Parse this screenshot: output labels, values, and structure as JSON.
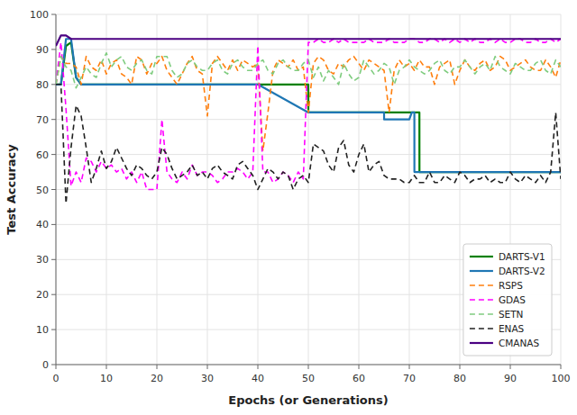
{
  "chart_data": {
    "type": "line",
    "xlabel": "Epochs (or Generations)",
    "ylabel": "Test Accuracy",
    "xlim": [
      0,
      100
    ],
    "ylim": [
      0,
      100
    ],
    "xticks": [
      0,
      10,
      20,
      30,
      40,
      50,
      60,
      70,
      80,
      90,
      100
    ],
    "yticks": [
      0,
      10,
      20,
      30,
      40,
      50,
      60,
      70,
      80,
      90,
      100
    ],
    "grid": true,
    "legend": "lower right",
    "series": [
      {
        "name": "DARTS-V1",
        "color": "#008000",
        "line_style": "solid",
        "x": [
          0,
          0.5,
          1,
          2,
          3,
          4,
          5,
          6,
          40,
          40.01,
          50,
          50.01,
          72,
          72.01,
          100
        ],
        "values": [
          80,
          80,
          80,
          91,
          92,
          82,
          80,
          80,
          80,
          80,
          80,
          72,
          72,
          55,
          55
        ]
      },
      {
        "name": "DARTS-V2",
        "color": "#1f77b4",
        "line_style": "solid",
        "x": [
          0,
          0.5,
          1,
          2,
          3,
          4,
          5,
          6,
          40,
          40.01,
          50,
          50.01,
          65,
          65.01,
          70,
          70.5,
          71,
          71.01,
          100
        ],
        "values": [
          80,
          80,
          80,
          93,
          93,
          82,
          80,
          80,
          80,
          80,
          72,
          72,
          72,
          70,
          70,
          72,
          72,
          55,
          55
        ]
      },
      {
        "name": "RSPS",
        "color": "#ff7f0e",
        "line_style": "dashed",
        "x": [
          0,
          1,
          2,
          3,
          4,
          5,
          6,
          7,
          8,
          9,
          10,
          11,
          12,
          13,
          14,
          15,
          16,
          17,
          18,
          19,
          20,
          21,
          22,
          23,
          24,
          25,
          26,
          27,
          28,
          29,
          30,
          31,
          32,
          33,
          34,
          35,
          36,
          37,
          38,
          39,
          40,
          41,
          42,
          43,
          44,
          45,
          46,
          47,
          48,
          49,
          50,
          51,
          52,
          53,
          54,
          55,
          56,
          57,
          58,
          59,
          60,
          61,
          62,
          63,
          64,
          65,
          66,
          67,
          68,
          69,
          70,
          71,
          72,
          73,
          74,
          75,
          76,
          77,
          78,
          79,
          80,
          81,
          82,
          83,
          84,
          85,
          86,
          87,
          88,
          89,
          90,
          91,
          92,
          93,
          94,
          95,
          96,
          97,
          98,
          99,
          100
        ],
        "values": [
          80,
          88,
          86,
          86,
          85,
          80,
          88,
          85,
          84,
          87,
          83,
          86,
          87,
          83,
          82,
          80,
          88,
          87,
          83,
          86,
          86,
          88,
          84,
          82,
          80,
          83,
          86,
          88,
          84,
          83,
          71,
          86,
          88,
          86,
          84,
          87,
          84,
          87,
          86,
          85,
          86,
          61,
          72,
          84,
          87,
          86,
          85,
          87,
          84,
          85,
          72,
          86,
          88,
          87,
          84,
          83,
          86,
          85,
          87,
          88,
          86,
          84,
          87,
          86,
          85,
          84,
          72,
          84,
          87,
          85,
          86,
          84,
          87,
          85,
          85,
          80,
          85,
          86,
          87,
          80,
          84,
          87,
          85,
          84,
          86,
          87,
          84,
          85,
          88,
          87,
          84,
          85,
          86,
          87,
          85,
          84,
          84,
          87,
          85,
          82,
          87
        ]
      },
      {
        "name": "GDAS",
        "color": "#ff00ff",
        "line_style": "dashed",
        "x": [
          0,
          1,
          2,
          3,
          4,
          5,
          6,
          7,
          8,
          9,
          10,
          11,
          12,
          13,
          14,
          15,
          16,
          17,
          18,
          19,
          20,
          21,
          22,
          23,
          24,
          25,
          26,
          27,
          28,
          29,
          30,
          31,
          32,
          33,
          34,
          35,
          36,
          37,
          38,
          39,
          40,
          41,
          42,
          43,
          44,
          45,
          46,
          47,
          48,
          49,
          50,
          51,
          52,
          53,
          54,
          55,
          56,
          57,
          58,
          59,
          60,
          61,
          62,
          63,
          64,
          65,
          66,
          67,
          68,
          69,
          70,
          71,
          72,
          73,
          74,
          75,
          76,
          77,
          78,
          79,
          80,
          81,
          82,
          83,
          84,
          85,
          86,
          87,
          88,
          89,
          90,
          91,
          92,
          93,
          94,
          95,
          96,
          97,
          98,
          99,
          100
        ],
        "values": [
          80,
          92,
          73,
          51,
          55,
          52,
          59,
          58,
          55,
          58,
          56,
          57,
          55,
          56,
          53,
          55,
          52,
          55,
          50,
          50,
          50,
          70,
          55,
          53,
          52,
          55,
          53,
          57,
          54,
          55,
          55,
          54,
          52,
          53,
          55,
          55,
          56,
          55,
          53,
          55,
          91,
          55,
          55,
          52,
          53,
          55,
          54,
          52,
          55,
          53,
          92,
          92,
          93,
          92,
          92,
          93,
          92,
          93,
          92,
          92,
          92,
          92,
          93,
          92,
          92,
          92,
          93,
          92,
          92,
          92,
          93,
          93,
          92,
          92,
          93,
          93,
          92,
          93,
          92,
          93,
          92,
          93,
          92,
          93,
          92,
          92,
          93,
          92,
          93,
          92,
          92,
          93,
          93,
          92,
          92,
          93,
          92,
          92,
          93,
          92,
          93
        ]
      },
      {
        "name": "SETN",
        "color": "#7fcc7f",
        "line_style": "dashed",
        "x": [
          0,
          1,
          2,
          3,
          4,
          5,
          6,
          7,
          8,
          9,
          10,
          11,
          12,
          13,
          14,
          15,
          16,
          17,
          18,
          19,
          20,
          21,
          22,
          23,
          24,
          25,
          26,
          27,
          28,
          29,
          30,
          31,
          32,
          33,
          34,
          35,
          36,
          37,
          38,
          39,
          40,
          41,
          42,
          43,
          44,
          45,
          46,
          47,
          48,
          49,
          50,
          51,
          52,
          53,
          54,
          55,
          56,
          57,
          58,
          59,
          60,
          61,
          62,
          63,
          64,
          65,
          66,
          67,
          68,
          69,
          70,
          71,
          72,
          73,
          74,
          75,
          76,
          77,
          78,
          79,
          80,
          81,
          82,
          83,
          84,
          85,
          86,
          87,
          88,
          89,
          90,
          91,
          92,
          93,
          94,
          95,
          96,
          97,
          98,
          99,
          100
        ],
        "values": [
          80,
          88,
          85,
          84,
          79,
          82,
          85,
          83,
          82,
          86,
          89,
          85,
          87,
          88,
          85,
          84,
          86,
          87,
          84,
          83,
          88,
          88,
          88,
          84,
          82,
          83,
          86,
          87,
          85,
          84,
          84,
          86,
          87,
          84,
          83,
          86,
          87,
          85,
          84,
          84,
          86,
          87,
          84,
          83,
          86,
          87,
          85,
          84,
          84,
          86,
          87,
          82,
          85,
          81,
          84,
          82,
          80,
          86,
          83,
          81,
          82,
          87,
          85,
          83,
          84,
          86,
          85,
          80,
          84,
          85,
          87,
          85,
          84,
          83,
          84,
          86,
          87,
          84,
          83,
          85,
          85,
          87,
          85,
          83,
          85,
          86,
          84,
          88,
          85,
          84,
          83,
          86,
          85,
          84,
          84,
          86,
          87,
          84,
          83,
          87,
          85
        ]
      },
      {
        "name": "ENAS",
        "color": "#222222",
        "line_style": "dashed",
        "x": [
          0,
          1,
          2,
          3,
          4,
          5,
          6,
          7,
          8,
          9,
          10,
          11,
          12,
          13,
          14,
          15,
          16,
          17,
          18,
          19,
          20,
          21,
          22,
          23,
          24,
          25,
          26,
          27,
          28,
          29,
          30,
          31,
          32,
          33,
          34,
          35,
          36,
          37,
          38,
          39,
          40,
          41,
          42,
          43,
          44,
          45,
          46,
          47,
          48,
          49,
          50,
          51,
          52,
          53,
          54,
          55,
          56,
          57,
          58,
          59,
          60,
          61,
          62,
          63,
          64,
          65,
          66,
          67,
          68,
          69,
          70,
          71,
          72,
          73,
          74,
          75,
          76,
          77,
          78,
          79,
          80,
          81,
          82,
          83,
          84,
          85,
          86,
          87,
          88,
          89,
          90,
          91,
          92,
          93,
          94,
          95,
          96,
          97,
          98,
          99,
          100
        ],
        "values": [
          80,
          80,
          46,
          62,
          74,
          71,
          62,
          52,
          56,
          61,
          56,
          58,
          62,
          59,
          56,
          54,
          57,
          56,
          54,
          53,
          55,
          62,
          60,
          56,
          53,
          54,
          55,
          57,
          54,
          55,
          53,
          56,
          57,
          55,
          54,
          53,
          57,
          58,
          56,
          54,
          50,
          53,
          56,
          55,
          53,
          55,
          54,
          50,
          53,
          54,
          52,
          63,
          62,
          61,
          57,
          55,
          62,
          64,
          57,
          55,
          60,
          63,
          55,
          57,
          58,
          54,
          53,
          53,
          53,
          52,
          52,
          54,
          52,
          52,
          55,
          52,
          52,
          54,
          53,
          52,
          55,
          54,
          52,
          53,
          53,
          54,
          52,
          53,
          52,
          52,
          55,
          53,
          52,
          54,
          53,
          52,
          54,
          52,
          55,
          72,
          53
        ]
      },
      {
        "name": "CMANAS",
        "color": "#4b0082",
        "line_style": "solid",
        "x": [
          0,
          1,
          2,
          3,
          4,
          5,
          10,
          20,
          30,
          40,
          50,
          60,
          70,
          80,
          90,
          100
        ],
        "values": [
          91,
          94,
          94,
          93,
          93,
          93,
          93,
          93,
          93,
          93,
          93,
          93,
          93,
          93,
          93,
          93
        ]
      }
    ]
  }
}
